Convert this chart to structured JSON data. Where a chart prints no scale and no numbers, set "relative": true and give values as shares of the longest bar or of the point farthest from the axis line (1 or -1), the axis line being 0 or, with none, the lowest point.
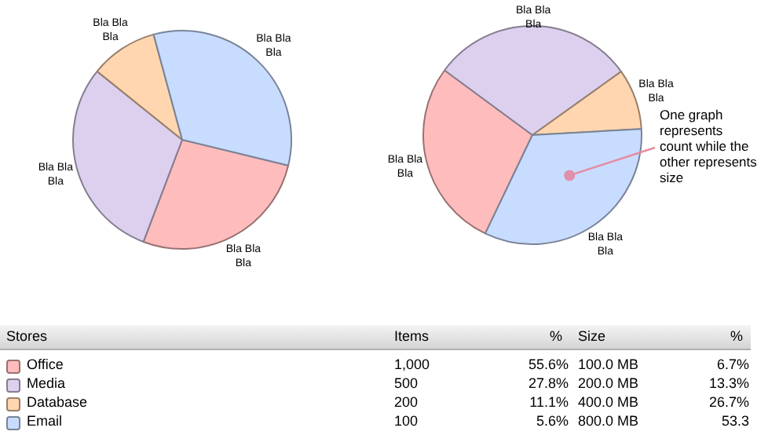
{
  "chart_data": [
    {
      "type": "pie",
      "relative": true,
      "categories": [
        "Bla Bla Bla",
        "Bla Bla Bla",
        "Bla Bla Bla",
        "Bla Bla Bla"
      ],
      "values": [
        27,
        30,
        10,
        33
      ],
      "colors": [
        "#ffbcbc",
        "#ddd0ef",
        "#ffd6b0",
        "#c8dcff"
      ]
    },
    {
      "type": "pie",
      "relative": true,
      "categories": [
        "Bla Bla Bla",
        "Bla Bla Bla",
        "Bla Bla Bla",
        "Bla Bla Bla"
      ],
      "values": [
        28,
        30,
        9,
        33
      ],
      "colors": [
        "#ffbcbc",
        "#ddd0ef",
        "#ffd6b0",
        "#c8dcff"
      ],
      "annotations": [
        "One graph represents count while the other represents size"
      ]
    },
    {
      "type": "other",
      "legend_title": "Stores",
      "categories": [
        "Office",
        "Media",
        "Database",
        "Email"
      ],
      "colors": [
        "#ffbcbc",
        "#ddd0ef",
        "#ffd6b0",
        "#c8dcff"
      ],
      "series": [
        {
          "name": "Items",
          "values": [
            1000,
            500,
            200,
            100
          ],
          "value_labels": [
            "1,000",
            "500",
            "200",
            "100"
          ]
        },
        {
          "name": "%",
          "values": [
            55.6,
            27.8,
            11.1,
            5.6
          ],
          "value_labels": [
            "55.6%",
            "27.8%",
            "11.1%",
            "5.6%"
          ]
        },
        {
          "name": "Size",
          "values": [
            100,
            200,
            400,
            800
          ],
          "value_labels": [
            "100.0 MB",
            "200.0 MB",
            "400.0 MB",
            "800.0 MB"
          ]
        },
        {
          "name": "%",
          "values": [
            6.7,
            13.3,
            26.7,
            53.3
          ],
          "value_labels": [
            "6.7%",
            "13.3%",
            "26.7%",
            "53.3"
          ]
        }
      ]
    }
  ]
}
